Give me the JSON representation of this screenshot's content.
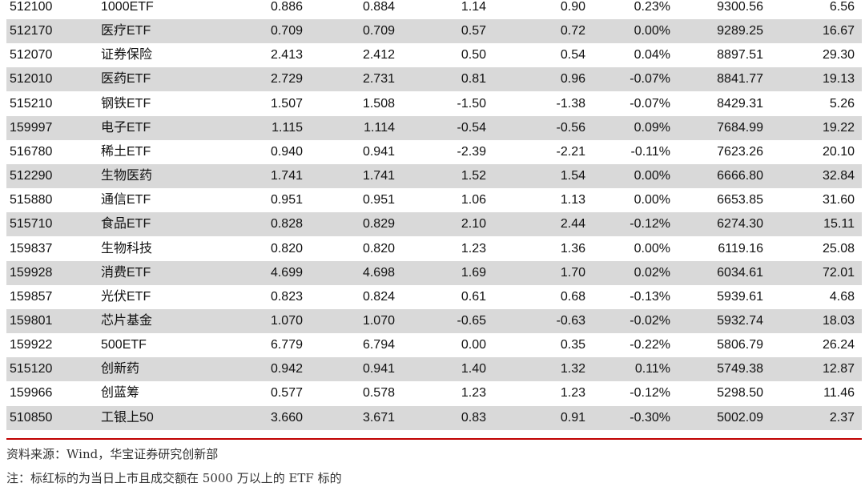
{
  "table": {
    "rows": [
      [
        "512100",
        "1000ETF",
        "0.886",
        "0.884",
        "1.14",
        "0.90",
        "0.23%",
        "9300.56",
        "6.56"
      ],
      [
        "512170",
        "医疗ETF",
        "0.709",
        "0.709",
        "0.57",
        "0.72",
        "0.00%",
        "9289.25",
        "16.67"
      ],
      [
        "512070",
        "证券保险",
        "2.413",
        "2.412",
        "0.50",
        "0.54",
        "0.04%",
        "8897.51",
        "29.30"
      ],
      [
        "512010",
        "医药ETF",
        "2.729",
        "2.731",
        "0.81",
        "0.96",
        "-0.07%",
        "8841.77",
        "19.13"
      ],
      [
        "515210",
        "钢铁ETF",
        "1.507",
        "1.508",
        "-1.50",
        "-1.38",
        "-0.07%",
        "8429.31",
        "5.26"
      ],
      [
        "159997",
        "电子ETF",
        "1.115",
        "1.114",
        "-0.54",
        "-0.56",
        "0.09%",
        "7684.99",
        "19.22"
      ],
      [
        "516780",
        "稀土ETF",
        "0.940",
        "0.941",
        "-2.39",
        "-2.21",
        "-0.11%",
        "7623.26",
        "20.10"
      ],
      [
        "512290",
        "生物医药",
        "1.741",
        "1.741",
        "1.52",
        "1.54",
        "0.00%",
        "6666.80",
        "32.84"
      ],
      [
        "515880",
        "通信ETF",
        "0.951",
        "0.951",
        "1.06",
        "1.13",
        "0.00%",
        "6653.85",
        "31.60"
      ],
      [
        "515710",
        "食品ETF",
        "0.828",
        "0.829",
        "2.10",
        "2.44",
        "-0.12%",
        "6274.30",
        "15.11"
      ],
      [
        "159837",
        "生物科技",
        "0.820",
        "0.820",
        "1.23",
        "1.36",
        "0.00%",
        "6119.16",
        "25.08"
      ],
      [
        "159928",
        "消费ETF",
        "4.699",
        "4.698",
        "1.69",
        "1.70",
        "0.02%",
        "6034.61",
        "72.01"
      ],
      [
        "159857",
        "光伏ETF",
        "0.823",
        "0.824",
        "0.61",
        "0.68",
        "-0.13%",
        "5939.61",
        "4.68"
      ],
      [
        "159801",
        "芯片基金",
        "1.070",
        "1.070",
        "-0.65",
        "-0.63",
        "-0.02%",
        "5932.74",
        "18.03"
      ],
      [
        "159922",
        "500ETF",
        "6.779",
        "6.794",
        "0.00",
        "0.35",
        "-0.22%",
        "5806.79",
        "26.24"
      ],
      [
        "515120",
        "创新药",
        "0.942",
        "0.941",
        "1.40",
        "1.32",
        "0.11%",
        "5749.38",
        "12.87"
      ],
      [
        "159966",
        "创蓝筹",
        "0.577",
        "0.578",
        "1.23",
        "1.23",
        "-0.12%",
        "5298.50",
        "11.46"
      ],
      [
        "510850",
        "工银上50",
        "3.660",
        "3.671",
        "0.83",
        "0.91",
        "-0.30%",
        "5002.09",
        "2.37"
      ]
    ]
  },
  "source": "资料来源：Wind，华宝证券研究创新部",
  "note": "注：标红标的为当日上市且成交额在 5000 万以上的 ETF 标的"
}
